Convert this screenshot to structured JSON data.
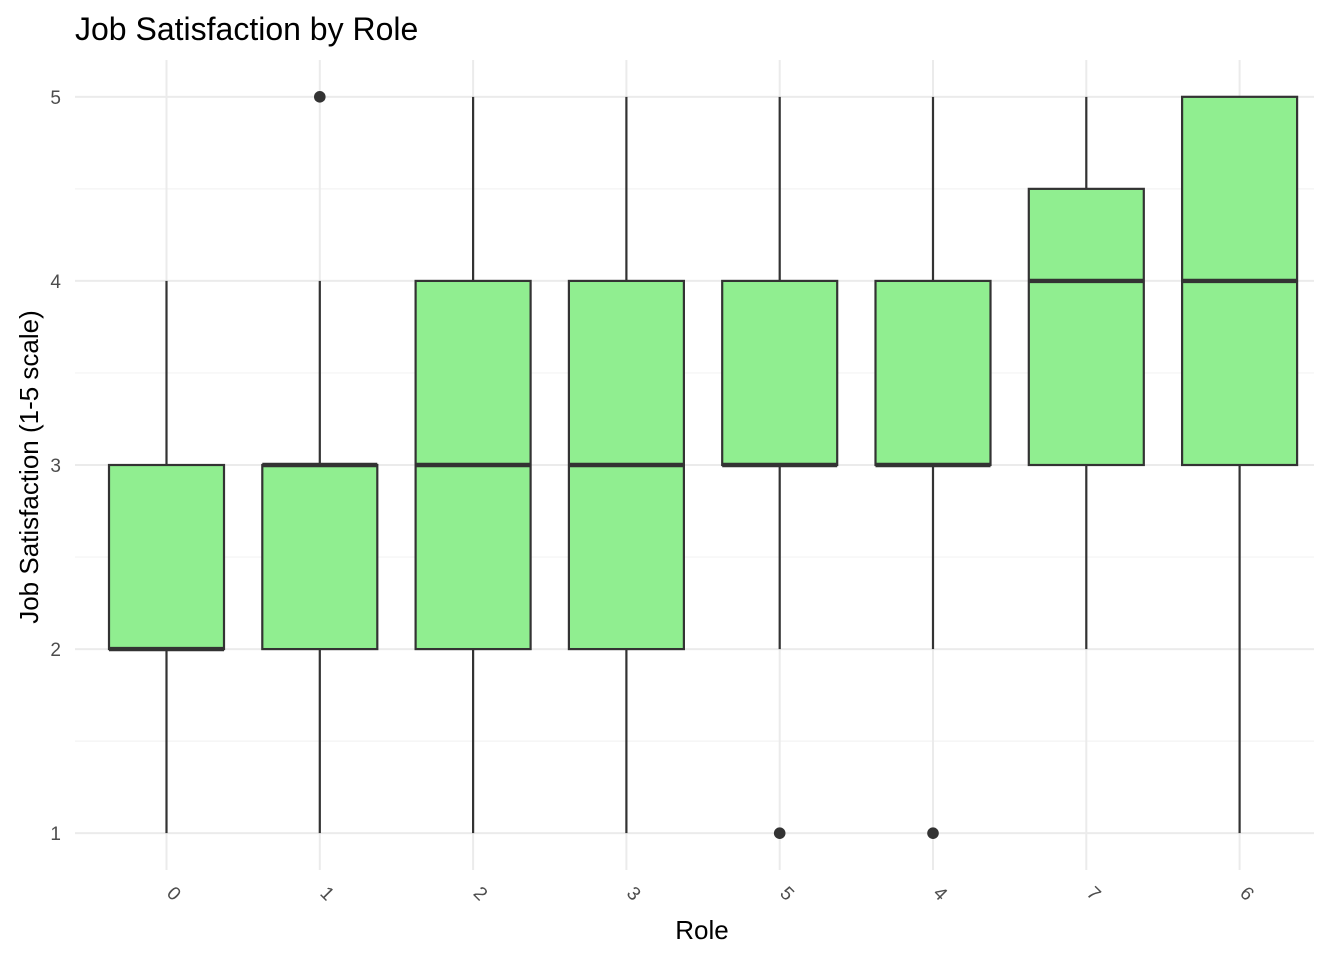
{
  "chart_data": {
    "type": "boxplot",
    "title": "Job Satisfaction by Role",
    "xlabel": "Role",
    "ylabel": "Job Satisfaction (1-5 scale)",
    "categories": [
      "0",
      "1",
      "2",
      "3",
      "5",
      "4",
      "7",
      "6"
    ],
    "boxes": [
      {
        "category": "0",
        "min": 1,
        "q1": 2,
        "median": 2,
        "q3": 3,
        "max": 4,
        "outliers": []
      },
      {
        "category": "1",
        "min": 1,
        "q1": 2,
        "median": 3,
        "q3": 3,
        "max": 4,
        "outliers": [
          5
        ]
      },
      {
        "category": "2",
        "min": 1,
        "q1": 2,
        "median": 3,
        "q3": 4,
        "max": 5,
        "outliers": []
      },
      {
        "category": "3",
        "min": 1,
        "q1": 2,
        "median": 3,
        "q3": 4,
        "max": 5,
        "outliers": []
      },
      {
        "category": "5",
        "min": 2,
        "q1": 3,
        "median": 3,
        "q3": 4,
        "max": 5,
        "outliers": [
          1
        ]
      },
      {
        "category": "4",
        "min": 2,
        "q1": 3,
        "median": 3,
        "q3": 4,
        "max": 5,
        "outliers": [
          1
        ]
      },
      {
        "category": "7",
        "min": 2,
        "q1": 3,
        "median": 4,
        "q3": 4.5,
        "max": 5,
        "outliers": []
      },
      {
        "category": "6",
        "min": 1,
        "q1": 3,
        "median": 4,
        "q3": 5,
        "max": 5,
        "outliers": []
      }
    ],
    "y_ticks": [
      1,
      2,
      3,
      4,
      5
    ],
    "ylim": [
      0.8,
      5.2
    ],
    "grid": true,
    "legend": "none",
    "colors": {
      "box_fill": "#90ee90",
      "box_outline": "#333333"
    }
  }
}
